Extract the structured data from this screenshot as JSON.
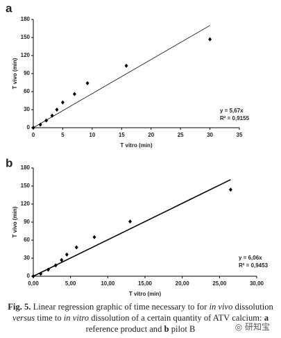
{
  "chart_data": [
    {
      "type": "scatter",
      "panel_label": "a",
      "xlabel": "T vitro (min)",
      "ylabel": "T vivo (min)",
      "x": [
        0,
        1.2,
        2.2,
        3.2,
        4,
        5,
        7,
        9.2,
        15.8,
        30
      ],
      "values": [
        0,
        5,
        12,
        20,
        30,
        42,
        56,
        74,
        103,
        147
      ],
      "fit": {
        "x": [
          0,
          30
        ],
        "y": [
          0,
          170
        ]
      },
      "annotations": [
        "y = 5,67x",
        "R² = 0,9155"
      ],
      "color": "#000000",
      "xlim": [
        0,
        35
      ],
      "xticks": [
        0,
        5,
        10,
        15,
        20,
        25,
        30,
        35
      ],
      "ylim": [
        0,
        180
      ],
      "yticks": [
        0,
        30,
        60,
        90,
        120,
        150,
        180
      ]
    },
    {
      "type": "scatter",
      "panel_label": "b",
      "xlabel": "T vitro (min)",
      "ylabel": "T vivo (min)",
      "x": [
        0,
        1,
        2,
        3,
        3.8,
        4.5,
        5.8,
        8.2,
        13,
        26.5
      ],
      "values": [
        0,
        4,
        11,
        18,
        27,
        36,
        48,
        65,
        91,
        144
      ],
      "fit": {
        "x": [
          0,
          26.5
        ],
        "y": [
          0,
          160.6
        ]
      },
      "annotations": [
        "y = 6,06x",
        "R² = 0,9453"
      ],
      "color": "#000000",
      "xlim": [
        0,
        30
      ],
      "xticks": [
        {
          "value": 0,
          "label": "0,00"
        },
        {
          "value": 5,
          "label": "5,00"
        },
        {
          "value": 10,
          "label": "10,00"
        },
        {
          "value": 15,
          "label": "15,00"
        },
        {
          "value": 20,
          "label": "20,00"
        },
        {
          "value": 25,
          "label": "25,00"
        },
        {
          "value": 30,
          "label": "30,00"
        }
      ],
      "ylim": [
        0,
        180
      ],
      "yticks": [
        0,
        30,
        60,
        90,
        120,
        150,
        180
      ]
    }
  ],
  "caption": [
    "Fig. 5.",
    " Linear regression graphic of time necessary to for ",
    "in vivo",
    " dissolution ",
    "versus",
    " time to ",
    "in vitro",
    " dissolution of a certain quantity of ATV calcium: ",
    "a",
    " reference product and ",
    "b",
    " pilot B"
  ],
  "watermark": "研知宝"
}
